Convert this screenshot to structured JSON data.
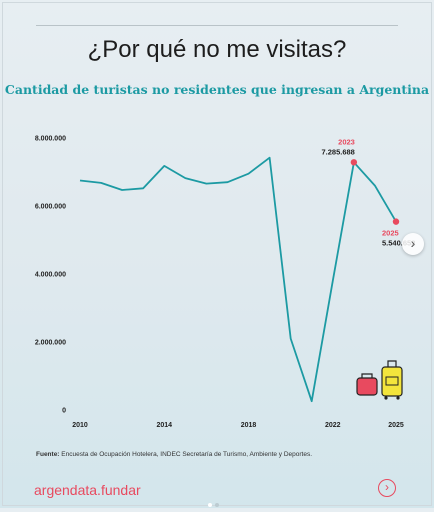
{
  "title": "¿Por qué no me visitas?",
  "subtitle": "Cantidad de turistas no residentes que ingresan a Argentina",
  "source_label": "Fuente:",
  "source_text": "Encuesta de Ocupación Hotelera, INDEC Secretaría de Turismo, Ambiente y Deportes.",
  "brand": "argendata.fundar",
  "next_icon": "chevron-right-icon",
  "colors": {
    "line": "#1c9aa3",
    "highlight": "#e84a5f",
    "accent": "#1c9aa3"
  },
  "chart_data": {
    "type": "line",
    "title": "Cantidad de turistas no residentes que ingresan a Argentina",
    "xlabel": "",
    "ylabel": "",
    "x": [
      2010,
      2011,
      2012,
      2013,
      2014,
      2015,
      2016,
      2017,
      2018,
      2019,
      2020,
      2021,
      2022,
      2023,
      2024,
      2025
    ],
    "values": [
      6750000,
      6680000,
      6470000,
      6520000,
      7180000,
      6820000,
      6660000,
      6700000,
      6950000,
      7420000,
      2100000,
      260000,
      3800000,
      7285688,
      6600000,
      5540652
    ],
    "xlim": [
      2010,
      2025
    ],
    "ylim": [
      0,
      8000000
    ],
    "x_ticks": [
      "2010",
      "2014",
      "2018",
      "2022",
      "2025"
    ],
    "y_ticks": [
      "0",
      "2.000.000",
      "4.000.000",
      "6.000.000",
      "8.000.000"
    ],
    "grid": false,
    "annotations": [
      {
        "year_label": "2023",
        "value_label": "7.285.688"
      },
      {
        "year_label": "2025",
        "value_label": "5.540.652"
      }
    ]
  }
}
